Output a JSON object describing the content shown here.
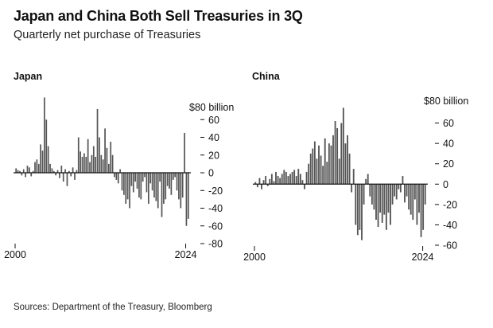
{
  "title": "Japan and China Both Sell Treasuries in 3Q",
  "subtitle": "Quarterly net purchase of Treasuries",
  "source": "Sources: Department of the Treasury, Bloomberg",
  "colors": {
    "bar": "#555555",
    "zero_line": "#111111",
    "text": "#111111"
  },
  "chart_data": [
    {
      "type": "bar",
      "title": "Japan",
      "ylabel": "$80 billion",
      "ylim": [
        -80,
        80
      ],
      "y_ticks": [
        60,
        40,
        20,
        0,
        -20,
        -40,
        -60,
        -80
      ],
      "y_tick_labels": [
        "60",
        "40",
        "20",
        "0",
        "-20",
        "-40",
        "-60",
        "-80"
      ],
      "x_tick_labels": [
        "2000",
        "2024"
      ],
      "x_tick_values": [
        2000,
        2024
      ],
      "x_start": 2000,
      "x_end": 2024.5,
      "series": [
        {
          "values": [
            5,
            3,
            2,
            -3,
            4,
            -5,
            8,
            6,
            -4,
            2,
            12,
            15,
            10,
            32,
            25,
            85,
            60,
            30,
            10,
            5,
            2,
            -3,
            3,
            -6,
            8,
            -10,
            4,
            -15,
            2,
            -4,
            6,
            -8,
            3,
            40,
            24,
            18,
            22,
            18,
            38,
            12,
            20,
            30,
            18,
            72,
            40,
            20,
            15,
            50,
            28,
            10,
            35,
            20,
            -5,
            -8,
            -12,
            4,
            -20,
            -25,
            -35,
            -30,
            -40,
            -15,
            -22,
            -10,
            -18,
            -28,
            -30,
            -10,
            -5,
            -22,
            -35,
            -12,
            -20,
            -28,
            -32,
            -40,
            -10,
            -50,
            -35,
            -30,
            -15,
            -18,
            -25,
            -8,
            -5,
            -20,
            -30,
            -40,
            -28,
            45,
            -60,
            -52
          ]
        }
      ]
    },
    {
      "type": "bar",
      "title": "China",
      "ylabel": "$80 billion",
      "ylim": [
        -60,
        80
      ],
      "y_ticks": [
        60,
        40,
        20,
        0,
        -20,
        -40,
        -60
      ],
      "y_tick_labels": [
        "60",
        "40",
        "20",
        "0",
        "-20",
        "-40",
        "-60"
      ],
      "x_tick_labels": [
        "2000",
        "2024"
      ],
      "x_tick_values": [
        2000,
        2024
      ],
      "x_start": 2000,
      "x_end": 2024.5,
      "series": [
        {
          "values": [
            2,
            -3,
            6,
            -5,
            4,
            8,
            -2,
            5,
            10,
            3,
            12,
            8,
            6,
            10,
            14,
            12,
            8,
            10,
            12,
            14,
            8,
            15,
            10,
            4,
            -5,
            12,
            20,
            30,
            35,
            42,
            25,
            38,
            28,
            18,
            45,
            22,
            40,
            38,
            48,
            62,
            55,
            25,
            60,
            75,
            40,
            48,
            30,
            -8,
            15,
            -40,
            -50,
            -45,
            -55,
            -20,
            5,
            10,
            -12,
            -20,
            -25,
            -35,
            -42,
            -28,
            -38,
            -30,
            -45,
            -28,
            -40,
            -20,
            -12,
            -15,
            -5,
            -8,
            8,
            -18,
            -12,
            -25,
            -30,
            -35,
            -15,
            -40,
            -28,
            -52,
            -45,
            -20
          ]
        }
      ]
    }
  ]
}
